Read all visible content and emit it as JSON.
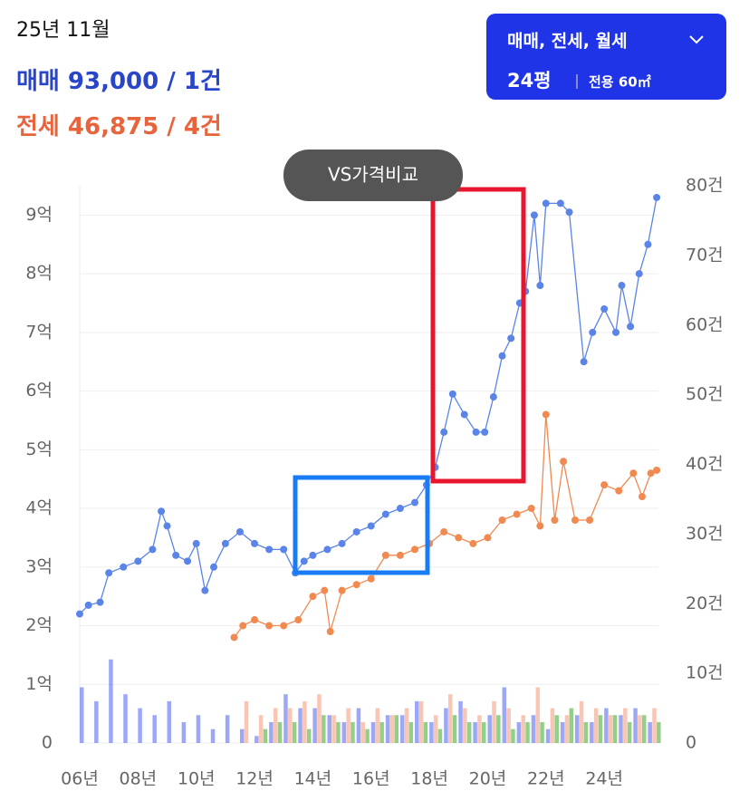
{
  "header": {
    "date": "25년 11월",
    "sale_text": "93,000 / 1건",
    "lease_text": "46,875 / 4건"
  },
  "filter_button": {
    "types": "매매, 전세, 월세",
    "size": "24평",
    "area": "전용 60㎡"
  },
  "compare_button": "VS가격비교",
  "chart_data": {
    "type": "line",
    "xlim": [
      2006,
      2025.86
    ],
    "xticks": [
      {
        "value": 2006,
        "label": "06년"
      },
      {
        "value": 2008,
        "label": "08년"
      },
      {
        "value": 2010,
        "label": "10년"
      },
      {
        "value": 2012,
        "label": "12년"
      },
      {
        "value": 2014,
        "label": "14년"
      },
      {
        "value": 2016,
        "label": "16년"
      },
      {
        "value": 2018,
        "label": "18년"
      },
      {
        "value": 2020,
        "label": "20년"
      },
      {
        "value": 2022,
        "label": "22년"
      },
      {
        "value": 2024,
        "label": "24년"
      }
    ],
    "ylim": [
      0,
      9.5
    ],
    "yticks": [
      0,
      {
        "value": 1,
        "label": "1억"
      },
      {
        "value": 2,
        "label": "2억"
      },
      {
        "value": 3,
        "label": "3억"
      },
      {
        "value": 4,
        "label": "4억"
      },
      {
        "value": 5,
        "label": "5억"
      },
      {
        "value": 6,
        "label": "6억"
      },
      {
        "value": 7,
        "label": "7억"
      },
      {
        "value": 8,
        "label": "8억"
      },
      {
        "value": 9,
        "label": "9억"
      }
    ],
    "y2lim": [
      0,
      80
    ],
    "y2ticks": [
      0,
      {
        "value": 10,
        "label": "10건"
      },
      {
        "value": 20,
        "label": "20건"
      },
      {
        "value": 30,
        "label": "30건"
      },
      {
        "value": 40,
        "label": "40건"
      },
      {
        "value": 50,
        "label": "50건"
      },
      {
        "value": 60,
        "label": "60건"
      },
      {
        "value": 70,
        "label": "70건"
      },
      {
        "value": 80,
        "label": "80건"
      }
    ],
    "grid": true,
    "series": [
      {
        "type": "bar",
        "axis": "y2",
        "color": "#5a6ef0",
        "x": [
          2006,
          2006.5,
          2007,
          2007.5,
          2008,
          2008.5,
          2009,
          2009.5,
          2010,
          2010.5,
          2011,
          2011.5,
          2012,
          2012.5,
          2013,
          2013.5,
          2014,
          2014.5,
          2015,
          2015.5,
          2016,
          2016.5,
          2017,
          2017.5,
          2018,
          2018.5,
          2019,
          2019.5,
          2020,
          2020.5,
          2021,
          2021.5,
          2022,
          2022.5,
          2023,
          2023.5,
          2024,
          2024.5,
          2025,
          2025.5
        ],
        "values": [
          8,
          6,
          12,
          7,
          5,
          4,
          6,
          3,
          4,
          2,
          4,
          2,
          1,
          3,
          7,
          5,
          5,
          4,
          3,
          5,
          3,
          4,
          4,
          6,
          3,
          5,
          6,
          3,
          4,
          8,
          3,
          4,
          2,
          3,
          4,
          3,
          5,
          4,
          5,
          3
        ]
      },
      {
        "type": "bar",
        "axis": "y2",
        "color": "#f4a080",
        "x": [
          2011.5,
          2012,
          2012.5,
          2013,
          2013.5,
          2014,
          2014.5,
          2015,
          2015.5,
          2016,
          2016.5,
          2017,
          2017.5,
          2018,
          2018.5,
          2019,
          2019.5,
          2020,
          2020.5,
          2021,
          2021.5,
          2022,
          2022.5,
          2023,
          2023.5,
          2024,
          2024.5,
          2025,
          2025.5
        ],
        "values": [
          6,
          4,
          5,
          5,
          6,
          7,
          4,
          5,
          3,
          5,
          4,
          5,
          6,
          4,
          7,
          5,
          4,
          6,
          5,
          4,
          8,
          5,
          4,
          6,
          5,
          4,
          5,
          4,
          5
        ]
      },
      {
        "type": "bar",
        "axis": "y2",
        "color": "#4caf3c",
        "x": [
          2012,
          2012.5,
          2013,
          2013.5,
          2014,
          2014.5,
          2015,
          2015.5,
          2016,
          2016.5,
          2017,
          2017.5,
          2018,
          2018.5,
          2019,
          2019.5,
          2020,
          2020.5,
          2021,
          2021.5,
          2022,
          2022.5,
          2023,
          2023.5,
          2024,
          2024.5,
          2025,
          2025.5
        ],
        "values": [
          2,
          3,
          3,
          2,
          4,
          3,
          3,
          2,
          3,
          4,
          3,
          3,
          2,
          4,
          3,
          3,
          4,
          2,
          3,
          3,
          4,
          5,
          3,
          4,
          4,
          3,
          4,
          3
        ]
      },
      {
        "type": "line",
        "name": "매매",
        "color": "#5b84e8",
        "x": [
          2006.0,
          2006.3,
          2006.7,
          2007.0,
          2007.5,
          2008.0,
          2008.5,
          2008.8,
          2009.0,
          2009.3,
          2009.7,
          2010.0,
          2010.3,
          2010.6,
          2011.0,
          2011.5,
          2012.0,
          2012.5,
          2013.0,
          2013.4,
          2013.7,
          2014.0,
          2014.5,
          2015.0,
          2015.5,
          2016.0,
          2016.5,
          2017.0,
          2017.5,
          2017.9,
          2018.2,
          2018.5,
          2018.8,
          2019.2,
          2019.6,
          2019.9,
          2020.2,
          2020.5,
          2020.8,
          2021.1,
          2021.3,
          2021.6,
          2021.8,
          2022.0,
          2022.5,
          2022.8,
          2023.3,
          2023.6,
          2024.0,
          2024.4,
          2024.6,
          2024.9,
          2025.2,
          2025.5,
          2025.8
        ],
        "values": [
          2.2,
          2.35,
          2.4,
          2.9,
          3.0,
          3.1,
          3.3,
          3.95,
          3.7,
          3.2,
          3.1,
          3.4,
          2.6,
          3.0,
          3.4,
          3.6,
          3.4,
          3.3,
          3.3,
          2.9,
          3.1,
          3.2,
          3.3,
          3.4,
          3.6,
          3.7,
          3.9,
          4.0,
          4.1,
          4.4,
          4.7,
          5.3,
          5.95,
          5.6,
          5.3,
          5.3,
          5.9,
          6.6,
          6.9,
          7.5,
          7.7,
          9.0,
          7.8,
          9.2,
          9.2,
          9.05,
          6.5,
          7.0,
          7.4,
          7.0,
          7.8,
          7.1,
          8.0,
          8.5,
          9.3
        ]
      },
      {
        "type": "line",
        "name": "전세",
        "color": "#f08a50",
        "x": [
          2011.3,
          2011.6,
          2012.0,
          2012.5,
          2013.0,
          2013.5,
          2014.0,
          2014.4,
          2014.6,
          2015.0,
          2015.5,
          2016.0,
          2016.5,
          2017.0,
          2017.5,
          2018.0,
          2018.5,
          2019.0,
          2019.5,
          2020.0,
          2020.5,
          2021.0,
          2021.5,
          2021.8,
          2022.0,
          2022.3,
          2022.6,
          2023.0,
          2023.5,
          2024.0,
          2024.5,
          2025.0,
          2025.3,
          2025.6,
          2025.8
        ],
        "values": [
          1.8,
          2.0,
          2.1,
          2.0,
          2.0,
          2.1,
          2.5,
          2.6,
          1.9,
          2.6,
          2.7,
          2.8,
          3.2,
          3.2,
          3.3,
          3.4,
          3.6,
          3.5,
          3.4,
          3.5,
          3.8,
          3.9,
          4.0,
          3.7,
          5.6,
          3.8,
          4.8,
          3.8,
          3.8,
          4.4,
          4.3,
          4.6,
          4.2,
          4.6,
          4.65
        ]
      }
    ]
  }
}
